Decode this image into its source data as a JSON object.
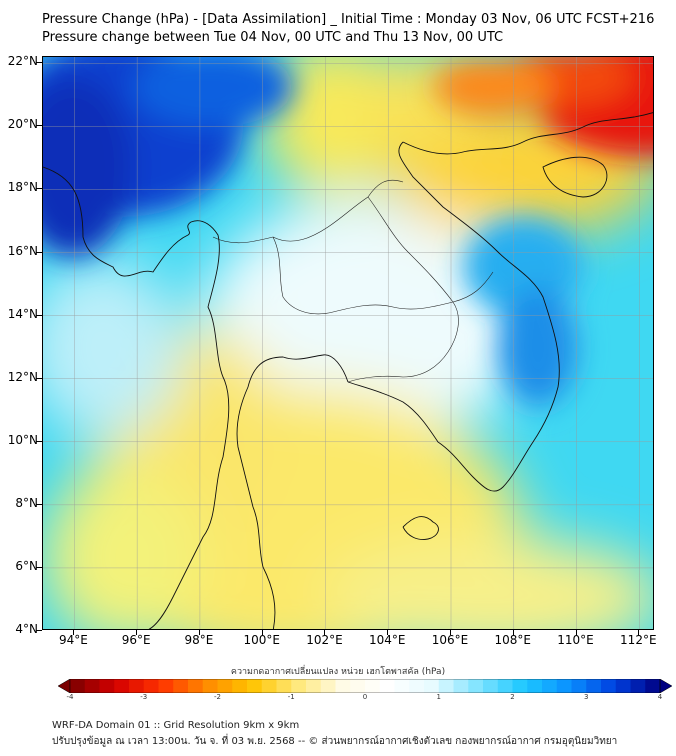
{
  "header": {
    "title": "Pressure Change (hPa) - [Data Assimilation] _ Initial Time : Monday 03 Nov, 06 UTC FCST+216",
    "subtitle": "Pressure change between Tue 04 Nov, 00 UTC and Thu 13 Nov, 00 UTC"
  },
  "map": {
    "lat_labels": [
      "22°N",
      "20°N",
      "18°N",
      "16°N",
      "14°N",
      "12°N",
      "10°N",
      "8°N",
      "6°N",
      "4°N"
    ],
    "lon_labels": [
      "94°E",
      "96°E",
      "98°E",
      "100°E",
      "102°E",
      "104°E",
      "106°E",
      "108°E",
      "110°E",
      "112°E"
    ],
    "lat_values": [
      22,
      20,
      18,
      16,
      14,
      12,
      10,
      8,
      6,
      4
    ],
    "lon_values": [
      94,
      96,
      98,
      100,
      102,
      104,
      106,
      108,
      110,
      112
    ],
    "lon_range": [
      93,
      112.5
    ],
    "lat_range": [
      4,
      22.2
    ]
  },
  "colorbar": {
    "title": "ความกดอากาศเปลี่ยนแปลง หน่วย เฮกโตพาสคัล (hPa)",
    "range": [
      -4,
      4
    ],
    "tick_labels": [
      "-4",
      "-3",
      "-2",
      "-1",
      "0",
      "1",
      "2",
      "3",
      "4"
    ],
    "colors": [
      "#7a0000",
      "#d40000",
      "#ff3300",
      "#ff8a00",
      "#ffc400",
      "#ffe87a",
      "#fffbe6",
      "#ffffff",
      "#e6fbff",
      "#7fe3ff",
      "#1ec8ff",
      "#0a90ff",
      "#0040e0",
      "#000080"
    ]
  },
  "footer": {
    "line1": "WRF-DA Domain 01 :: Grid Resolution 9km x 9km",
    "line2": "ปรับปรุงข้อมูล ณ เวลา 13:00น. วัน จ. ที่ 03 พ.ย. 2568 -- © ส่วนพยากรณ์อากาศเชิงตัวเลข กองพยากรณ์อากาศ กรมอุตุนิยมวิทยา"
  }
}
